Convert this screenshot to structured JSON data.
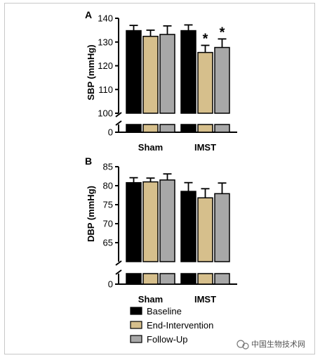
{
  "colors": {
    "Baseline": "#000000",
    "End-Intervention": "#d6bf8c",
    "Follow-Up": "#a8a8a8"
  },
  "legend": [
    "Baseline",
    "End-Intervention",
    "Follow-Up"
  ],
  "watermark": "中国生物技术网",
  "chart_data": [
    {
      "panel": "A",
      "type": "bar",
      "ylabel": "SBP (mmHg)",
      "categories": [
        "Sham",
        "IMST"
      ],
      "yticks": [
        100,
        110,
        120,
        130,
        140
      ],
      "ylim_break": [
        0,
        100
      ],
      "ylim": [
        100,
        140
      ],
      "axis_break": true,
      "series": [
        {
          "name": "Baseline",
          "values": [
            134.8,
            134.8
          ],
          "errors": [
            2.2,
            2.4
          ]
        },
        {
          "name": "End-Intervention",
          "values": [
            132.4,
            125.6
          ],
          "errors": [
            2.6,
            3.0
          ]
        },
        {
          "name": "Follow-Up",
          "values": [
            133.2,
            127.7
          ],
          "errors": [
            3.6,
            3.6
          ]
        }
      ],
      "annotations": [
        {
          "category": "IMST",
          "series": "End-Intervention",
          "text": "*"
        },
        {
          "category": "IMST",
          "series": "Follow-Up",
          "text": "*"
        }
      ]
    },
    {
      "panel": "B",
      "type": "bar",
      "ylabel": "DBP (mmHg)",
      "categories": [
        "Sham",
        "IMST"
      ],
      "yticks": [
        65,
        70,
        75,
        80,
        85
      ],
      "ylim_break": [
        0,
        60
      ],
      "ylim": [
        60,
        85
      ],
      "axis_break": true,
      "series": [
        {
          "name": "Baseline",
          "values": [
            80.8,
            78.5
          ],
          "errors": [
            1.3,
            2.3
          ]
        },
        {
          "name": "End-Intervention",
          "values": [
            81.0,
            76.8
          ],
          "errors": [
            1.0,
            2.4
          ]
        },
        {
          "name": "Follow-Up",
          "values": [
            81.5,
            77.9
          ],
          "errors": [
            1.6,
            2.8
          ]
        }
      ],
      "annotations": []
    }
  ]
}
